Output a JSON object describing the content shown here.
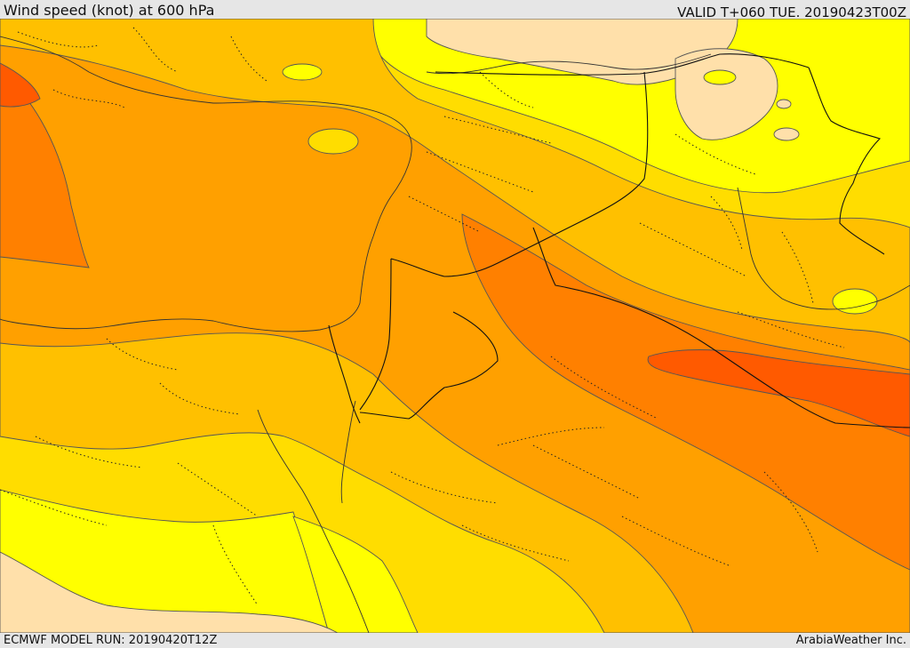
{
  "header": {
    "title": "Wind speed (knot) at 600 hPa",
    "valid": "VALID T+060 TUE. 20190423T00Z"
  },
  "footer": {
    "model_run": "ECMWF MODEL RUN: 20190420T12Z",
    "credit": "ArabiaWeather Inc."
  },
  "map": {
    "variable": "Wind speed",
    "unit": "knot",
    "level": "600 hPa",
    "colors": {
      "band_lightest": "#ffe0aa",
      "band_yellow": "#ffff00",
      "band_gold": "#ffdd00",
      "band_amber": "#ffc000",
      "band_orange_light": "#ffa000",
      "band_orange": "#ff8000",
      "band_orange_dark": "#ff5a00",
      "coastline": "#333333",
      "border": "#111111"
    }
  }
}
